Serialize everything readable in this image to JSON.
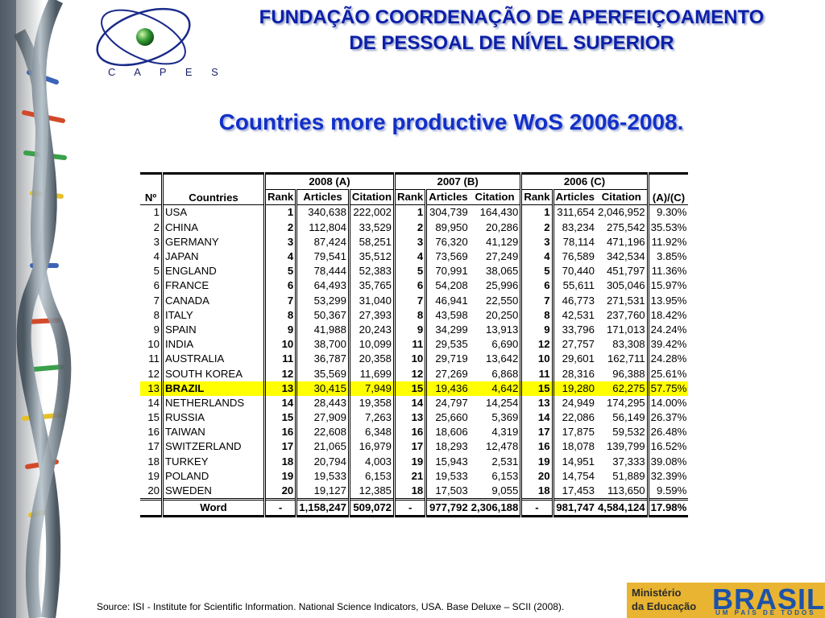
{
  "header": {
    "logo_text": "C A P E S",
    "org_line1": "FUNDAÇÃO COORDENAÇÃO DE APERFEIÇOAMENTO",
    "org_line2": "DE PESSOAL DE NÍVEL SUPERIOR",
    "slide_title": "Countries more productive WoS 2006-2008."
  },
  "table": {
    "group_headers": [
      "2008 (A)",
      "2007 (B)",
      "2006 (C)"
    ],
    "col_no": "Nº",
    "col_countries": "Countries",
    "sub_headers": [
      "Rank",
      "Articles",
      "Citation"
    ],
    "col_ratio": "(A)/(C)",
    "rows": [
      {
        "n": "1",
        "country": "USA",
        "r08": "1",
        "a08": "340,638",
        "c08": "222,002",
        "r07": "1",
        "a07": "304,739",
        "c07": "164,430",
        "r06": "1",
        "a06": "311,654",
        "c06": "2,046,952",
        "ratio": "9.30%"
      },
      {
        "n": "2",
        "country": "CHINA",
        "r08": "2",
        "a08": "112,804",
        "c08": "33,529",
        "r07": "2",
        "a07": "89,950",
        "c07": "20,286",
        "r06": "2",
        "a06": "83,234",
        "c06": "275,542",
        "ratio": "35.53%"
      },
      {
        "n": "3",
        "country": "GERMANY",
        "r08": "3",
        "a08": "87,424",
        "c08": "58,251",
        "r07": "3",
        "a07": "76,320",
        "c07": "41,129",
        "r06": "3",
        "a06": "78,114",
        "c06": "471,196",
        "ratio": "11.92%"
      },
      {
        "n": "4",
        "country": "JAPAN",
        "r08": "4",
        "a08": "79,541",
        "c08": "35,512",
        "r07": "4",
        "a07": "73,569",
        "c07": "27,249",
        "r06": "4",
        "a06": "76,589",
        "c06": "342,534",
        "ratio": "3.85%"
      },
      {
        "n": "5",
        "country": "ENGLAND",
        "r08": "5",
        "a08": "78,444",
        "c08": "52,383",
        "r07": "5",
        "a07": "70,991",
        "c07": "38,065",
        "r06": "5",
        "a06": "70,440",
        "c06": "451,797",
        "ratio": "11.36%"
      },
      {
        "n": "6",
        "country": "FRANCE",
        "r08": "6",
        "a08": "64,493",
        "c08": "35,765",
        "r07": "6",
        "a07": "54,208",
        "c07": "25,996",
        "r06": "6",
        "a06": "55,611",
        "c06": "305,046",
        "ratio": "15.97%"
      },
      {
        "n": "7",
        "country": "CANADA",
        "r08": "7",
        "a08": "53,299",
        "c08": "31,040",
        "r07": "7",
        "a07": "46,941",
        "c07": "22,550",
        "r06": "7",
        "a06": "46,773",
        "c06": "271,531",
        "ratio": "13.95%"
      },
      {
        "n": "8",
        "country": "ITALY",
        "r08": "8",
        "a08": "50,367",
        "c08": "27,393",
        "r07": "8",
        "a07": "43,598",
        "c07": "20,250",
        "r06": "8",
        "a06": "42,531",
        "c06": "237,760",
        "ratio": "18.42%"
      },
      {
        "n": "9",
        "country": "SPAIN",
        "r08": "9",
        "a08": "41,988",
        "c08": "20,243",
        "r07": "9",
        "a07": "34,299",
        "c07": "13,913",
        "r06": "9",
        "a06": "33,796",
        "c06": "171,013",
        "ratio": "24.24%"
      },
      {
        "n": "10",
        "country": "INDIA",
        "r08": "10",
        "a08": "38,700",
        "c08": "10,099",
        "r07": "11",
        "a07": "29,535",
        "c07": "6,690",
        "r06": "12",
        "a06": "27,757",
        "c06": "83,308",
        "ratio": "39.42%"
      },
      {
        "n": "11",
        "country": "AUSTRALIA",
        "r08": "11",
        "a08": "36,787",
        "c08": "20,358",
        "r07": "10",
        "a07": "29,719",
        "c07": "13,642",
        "r06": "10",
        "a06": "29,601",
        "c06": "162,711",
        "ratio": "24.28%"
      },
      {
        "n": "12",
        "country": "SOUTH KOREA",
        "r08": "12",
        "a08": "35,569",
        "c08": "11,699",
        "r07": "12",
        "a07": "27,269",
        "c07": "6,868",
        "r06": "11",
        "a06": "28,316",
        "c06": "96,388",
        "ratio": "25.61%"
      },
      {
        "n": "13",
        "country": "BRAZIL",
        "r08": "13",
        "a08": "30,415",
        "c08": "7,949",
        "r07": "15",
        "a07": "19,436",
        "c07": "4,642",
        "r06": "15",
        "a06": "19,280",
        "c06": "62,275",
        "ratio": "57.75%",
        "highlight": true
      },
      {
        "n": "14",
        "country": "NETHERLANDS",
        "r08": "14",
        "a08": "28,443",
        "c08": "19,358",
        "r07": "14",
        "a07": "24,797",
        "c07": "14,254",
        "r06": "13",
        "a06": "24,949",
        "c06": "174,295",
        "ratio": "14.00%"
      },
      {
        "n": "15",
        "country": "RUSSIA",
        "r08": "15",
        "a08": "27,909",
        "c08": "7,263",
        "r07": "13",
        "a07": "25,660",
        "c07": "5,369",
        "r06": "14",
        "a06": "22,086",
        "c06": "56,149",
        "ratio": "26.37%"
      },
      {
        "n": "16",
        "country": "TAIWAN",
        "r08": "16",
        "a08": "22,608",
        "c08": "6,348",
        "r07": "16",
        "a07": "18,606",
        "c07": "4,319",
        "r06": "17",
        "a06": "17,875",
        "c06": "59,532",
        "ratio": "26.48%"
      },
      {
        "n": "17",
        "country": "SWITZERLAND",
        "r08": "17",
        "a08": "21,065",
        "c08": "16,979",
        "r07": "17",
        "a07": "18,293",
        "c07": "12,478",
        "r06": "16",
        "a06": "18,078",
        "c06": "139,799",
        "ratio": "16.52%"
      },
      {
        "n": "18",
        "country": "TURKEY",
        "r08": "18",
        "a08": "20,794",
        "c08": "4,003",
        "r07": "19",
        "a07": "15,943",
        "c07": "2,531",
        "r06": "19",
        "a06": "14,951",
        "c06": "37,333",
        "ratio": "39.08%"
      },
      {
        "n": "19",
        "country": "POLAND",
        "r08": "19",
        "a08": "19,533",
        "c08": "6,153",
        "r07": "21",
        "a07": "19,533",
        "c07": "6,153",
        "r06": "20",
        "a06": "14,754",
        "c06": "51,889",
        "ratio": "32.39%"
      },
      {
        "n": "20",
        "country": "SWEDEN",
        "r08": "20",
        "a08": "19,127",
        "c08": "12,385",
        "r07": "18",
        "a07": "17,503",
        "c07": "9,055",
        "r06": "18",
        "a06": "17,453",
        "c06": "113,650",
        "ratio": "9.59%"
      }
    ],
    "footer": {
      "label": "Word",
      "r08": "-",
      "a08": "1,158,247",
      "c08": "509,072",
      "r07": "-",
      "a07": "977,792",
      "c07": "2,306,188",
      "r06": "-",
      "a06": "981,747",
      "c06": "4,584,124",
      "ratio": "17.98%"
    }
  },
  "footer": {
    "source": "Source: ISI - Institute for Scientific Information. National Science Indicators, USA. Base Deluxe – SCII (2008).",
    "ministry_line1": "Ministério",
    "ministry_line2": "da Educação",
    "brasil_word": "BRASIL",
    "brasil_sub": "UM PAÍS DE TODOS"
  },
  "colors": {
    "title_blue": "#0c1fa8",
    "highlight_yellow": "#ffff00",
    "ministry_bg": "#e8b431"
  }
}
